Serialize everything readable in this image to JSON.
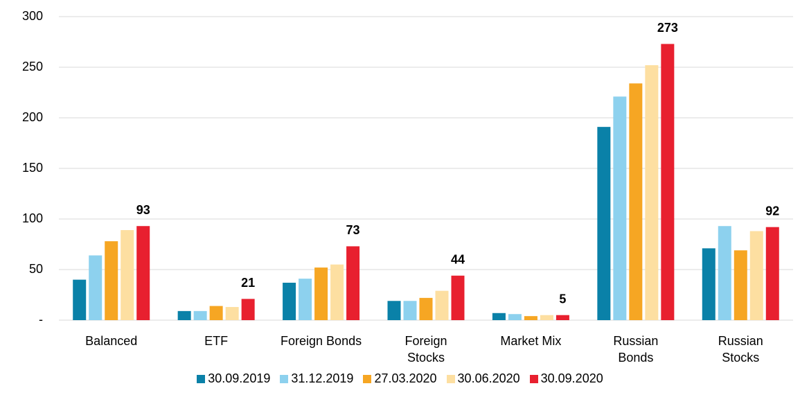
{
  "chart_data": {
    "type": "bar",
    "categories": [
      "Balanced",
      "ETF",
      "Foreign Bonds",
      "Foreign Stocks",
      "Market Mix",
      "Russian Bonds",
      "Russian Stocks"
    ],
    "series": [
      {
        "name": "30.09.2019",
        "color": "#0a81a8",
        "values": [
          40,
          9,
          37,
          19,
          7,
          191,
          71
        ]
      },
      {
        "name": "31.12.2019",
        "color": "#8dd1ee",
        "values": [
          64,
          9,
          41,
          19,
          6,
          221,
          93
        ]
      },
      {
        "name": "27.03.2020",
        "color": "#f6a623",
        "values": [
          78,
          14,
          52,
          22,
          4,
          234,
          69
        ]
      },
      {
        "name": "30.06.2020",
        "color": "#fddfa1",
        "values": [
          89,
          13,
          55,
          29,
          5,
          252,
          88
        ]
      },
      {
        "name": "30.09.2020",
        "color": "#e8202f",
        "values": [
          93,
          21,
          73,
          44,
          5,
          273,
          92
        ],
        "data_labels": true
      }
    ],
    "ylim": [
      0,
      300
    ],
    "yticks": [
      {
        "value": 0,
        "label": "-"
      },
      50,
      100,
      150,
      200,
      250,
      300
    ],
    "grid": true,
    "legend": "bottom"
  }
}
